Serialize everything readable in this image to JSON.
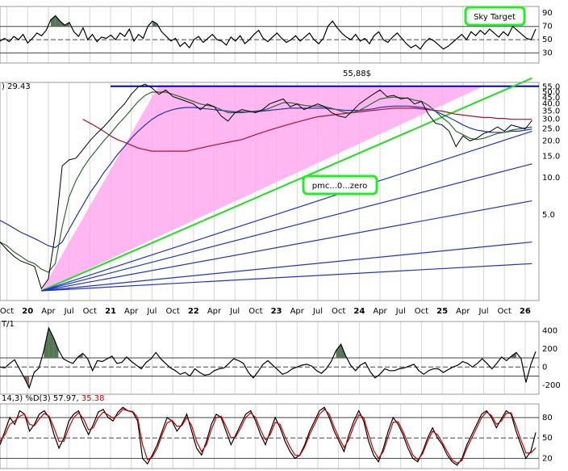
{
  "chart_data": [
    {
      "type": "line",
      "panel": "rsi",
      "yticks": [
        "90",
        "70",
        "50",
        "30"
      ],
      "ylim": [
        15,
        100
      ],
      "reference_lines": [
        70,
        50,
        30
      ],
      "annotation": "Sky Target",
      "series": [
        {
          "color": "#000000",
          "values": [
            48,
            52,
            47,
            55,
            50,
            58,
            45,
            52,
            60,
            56,
            64,
            80,
            86,
            78,
            72,
            76,
            62,
            55,
            68,
            50,
            58,
            47,
            54,
            52,
            57,
            50,
            60,
            55,
            66,
            48,
            58,
            52,
            70,
            78,
            74,
            62,
            55,
            48,
            52,
            40,
            46,
            38,
            50,
            55,
            46,
            52,
            58,
            50,
            48,
            42,
            54,
            48,
            56,
            44,
            50,
            58,
            64,
            52,
            47,
            54,
            60,
            52,
            46,
            50,
            56,
            48,
            54,
            60,
            50,
            44,
            52,
            70,
            78,
            68,
            60,
            54,
            50,
            58,
            48,
            52,
            44,
            56,
            62,
            50,
            46,
            54,
            60,
            52,
            44,
            38,
            42,
            36,
            46,
            52,
            48,
            42,
            36,
            40,
            46,
            52,
            58,
            50,
            62,
            56,
            64,
            58,
            66,
            60,
            54,
            62,
            56,
            70,
            64,
            58,
            52,
            50,
            66
          ]
        }
      ]
    },
    {
      "type": "line",
      "panel": "price",
      "scale": "log",
      "header_value": "29.43",
      "yticks": [
        "55.0",
        "50.0",
        "45.0",
        "40.0",
        "35.0",
        "30.0",
        "25.0",
        "20.0",
        "15.0",
        "10.0",
        "5.0"
      ],
      "xtick_labels": [
        "Oct",
        "20",
        "Apr",
        "Jul",
        "Oct",
        "21",
        "Apr",
        "Jul",
        "Oct",
        "22",
        "Apr",
        "Jul",
        "Oct",
        "23",
        "Apr",
        "Jul",
        "Oct",
        "24",
        "Apr",
        "Jul",
        "Oct",
        "25",
        "Apr",
        "Jul",
        "Oct",
        "26"
      ],
      "xtick_dates": [
        "2019-10",
        "2020-01",
        "2020-04",
        "2020-07",
        "2020-10",
        "2021-01",
        "2021-04",
        "2021-07",
        "2021-10",
        "2022-01",
        "2022-04",
        "2022-07",
        "2022-10",
        "2023-01",
        "2023-04",
        "2023-07",
        "2023-10",
        "2024-01",
        "2024-04",
        "2024-07",
        "2024-10",
        "2025-01",
        "2025-04",
        "2025-07",
        "2025-10",
        "2026-01"
      ],
      "annotations": [
        "55,88$",
        "pmc...0...zero"
      ],
      "horizontal_line": {
        "value": 55.88,
        "color": "#0000cc"
      },
      "fan_lines": {
        "origin": {
          "date": "2020-03",
          "value": 1.2
        },
        "colors": [
          "#22dd22",
          "#2233cc",
          "#2233cc",
          "#2233cc",
          "#2233cc",
          "#2233cc"
        ],
        "end_values_2026_02": [
          65,
          24,
          13,
          6.5,
          3.0,
          2.0
        ]
      },
      "shaded_triangle_color": "#ffaaee",
      "price": {
        "dates": [
          "2019-09",
          "2019-10",
          "2019-11",
          "2019-12",
          "2020-01",
          "2020-02",
          "2020-03",
          "2020-04",
          "2020-05",
          "2020-06",
          "2020-07",
          "2020-08",
          "2020-09",
          "2020-10",
          "2020-11",
          "2020-12",
          "2021-01",
          "2021-02",
          "2021-03",
          "2021-04",
          "2021-05",
          "2021-06",
          "2021-07",
          "2021-08",
          "2021-09",
          "2021-10",
          "2021-11",
          "2021-12",
          "2022-01",
          "2022-02",
          "2022-03",
          "2022-04",
          "2022-05",
          "2022-06",
          "2022-07",
          "2022-08",
          "2022-09",
          "2022-10",
          "2022-11",
          "2022-12",
          "2023-01",
          "2023-02",
          "2023-03",
          "2023-04",
          "2023-05",
          "2023-06",
          "2023-07",
          "2023-08",
          "2023-09",
          "2023-10",
          "2023-11",
          "2023-12",
          "2024-01",
          "2024-02",
          "2024-03",
          "2024-04",
          "2024-05",
          "2024-06",
          "2024-07",
          "2024-08",
          "2024-09",
          "2024-10",
          "2024-11",
          "2024-12",
          "2025-01",
          "2025-02",
          "2025-03",
          "2025-04",
          "2025-05",
          "2025-06",
          "2025-07",
          "2025-08",
          "2025-09",
          "2025-10",
          "2025-11",
          "2025-12",
          "2026-01",
          "2026-02"
        ],
        "values": [
          3.0,
          2.6,
          2.3,
          2.1,
          2.0,
          1.9,
          1.25,
          1.5,
          3.5,
          12.5,
          14.0,
          14.5,
          17.0,
          20.0,
          23.0,
          26.0,
          30.0,
          35.0,
          40.0,
          48.0,
          55.0,
          58.0,
          54.0,
          48.0,
          52.0,
          46.0,
          44.0,
          42.0,
          40.0,
          36.0,
          40.0,
          38.0,
          32.0,
          29.0,
          34.0,
          36.0,
          35.0,
          34.0,
          36.0,
          40.0,
          42.0,
          44.0,
          38.0,
          40.0,
          36.0,
          38.0,
          40.0,
          38.0,
          34.0,
          32.0,
          31.0,
          35.0,
          40.0,
          44.0,
          48.0,
          52.0,
          46.0,
          47.0,
          44.0,
          45.0,
          40.0,
          42.0,
          33.0,
          28.0,
          27.0,
          24.0,
          18.0,
          22.0,
          20.0,
          21.0,
          23.0,
          24.0,
          26.0,
          24.0,
          27.0,
          26.0,
          25.0,
          29.43
        ]
      },
      "ma_short": {
        "color": "#336633",
        "values": [
          3.0,
          2.8,
          2.5,
          2.3,
          2.1,
          2.0,
          1.8,
          1.7,
          2.0,
          4.0,
          7.0,
          9.5,
          12.0,
          14.5,
          17.0,
          20.0,
          23.0,
          27.0,
          31.0,
          36.0,
          42.0,
          47.0,
          50.0,
          50.0,
          50.0,
          48.0,
          46.0,
          44.0,
          42.0,
          40.0,
          39.0,
          38.0,
          36.0,
          34.0,
          34.0,
          34.0,
          34.5,
          35.0,
          35.5,
          37.0,
          39.0,
          41.0,
          41.0,
          40.0,
          39.0,
          38.5,
          38.5,
          38.0,
          37.0,
          35.5,
          34.0,
          34.0,
          35.5,
          38.0,
          41.0,
          44.0,
          45.0,
          45.5,
          45.0,
          44.5,
          43.0,
          42.0,
          39.0,
          35.0,
          31.0,
          28.0,
          24.0,
          22.5,
          21.0,
          20.5,
          21.0,
          22.0,
          23.0,
          23.5,
          24.5,
          25.0,
          25.5,
          26.0
        ]
      },
      "ma_mid": {
        "color": "#2233aa",
        "values": [
          4.5,
          4.2,
          3.9,
          3.6,
          3.4,
          3.2,
          3.0,
          2.8,
          2.7,
          3.0,
          3.8,
          4.8,
          6.0,
          7.5,
          9.0,
          11.0,
          13.0,
          15.5,
          18.0,
          21.0,
          24.0,
          27.0,
          30.0,
          32.5,
          34.5,
          36.0,
          37.0,
          37.5,
          37.5,
          37.0,
          36.5,
          36.0,
          35.5,
          35.0,
          34.5,
          34.5,
          34.5,
          34.5,
          35.0,
          35.5,
          36.0,
          36.5,
          37.0,
          37.0,
          37.0,
          37.0,
          37.0,
          37.0,
          36.5,
          36.0,
          35.5,
          35.5,
          35.5,
          36.0,
          36.5,
          37.5,
          38.0,
          38.5,
          38.5,
          38.5,
          38.0,
          37.5,
          36.5,
          35.0,
          33.0,
          31.0,
          29.0,
          27.0,
          25.5,
          24.5,
          24.0,
          23.5,
          23.5,
          23.5,
          24.0,
          24.0,
          24.5,
          25.0
        ]
      },
      "ma_long": {
        "color": "#aa1133",
        "values": [
          null,
          null,
          null,
          null,
          null,
          null,
          null,
          null,
          null,
          null,
          null,
          null,
          30.0,
          28.0,
          26.0,
          24.0,
          22.0,
          20.5,
          19.5,
          18.5,
          17.5,
          17.0,
          16.5,
          16.5,
          16.5,
          16.5,
          16.5,
          16.5,
          17.0,
          17.5,
          18.0,
          18.5,
          19.0,
          19.5,
          20.0,
          20.5,
          21.5,
          22.5,
          23.5,
          24.5,
          25.5,
          26.5,
          27.5,
          28.5,
          29.5,
          30.5,
          31.5,
          32.0,
          32.5,
          33.0,
          33.5,
          34.0,
          34.5,
          35.0,
          35.5,
          36.0,
          36.5,
          37.0,
          37.0,
          37.0,
          37.0,
          36.5,
          36.0,
          35.5,
          35.0,
          34.0,
          33.0,
          32.5,
          32.0,
          31.5,
          31.0,
          31.0,
          30.5,
          30.5,
          30.0,
          30.0,
          30.0,
          30.0
        ]
      }
    },
    {
      "type": "line",
      "panel": "oscillator",
      "header": "T/1",
      "yticks": [
        "400",
        "200",
        "0",
        "-200"
      ],
      "ylim": [
        -300,
        500
      ],
      "reference_lines": [
        0,
        100,
        -100
      ],
      "series": [
        {
          "color": "#000000",
          "values": [
            0,
            -10,
            40,
            80,
            -20,
            -120,
            -230,
            -60,
            -10,
            180,
            430,
            320,
            190,
            90,
            60,
            40,
            110,
            150,
            90,
            -40,
            70,
            60,
            90,
            120,
            40,
            50,
            110,
            60,
            20,
            -20,
            50,
            90,
            160,
            90,
            40,
            -10,
            -40,
            -80,
            -60,
            -100,
            -20,
            -60,
            -90,
            -80,
            -40,
            -20,
            -10,
            40,
            90,
            70,
            40,
            -60,
            -120,
            -50,
            30,
            70,
            20,
            -30,
            -80,
            -60,
            -20,
            0,
            20,
            30,
            10,
            -40,
            -70,
            -20,
            60,
            180,
            250,
            120,
            20,
            -40,
            20,
            50,
            -50,
            -120,
            -80,
            -20,
            -40,
            -40,
            -20,
            -10,
            10,
            30,
            -40,
            -80,
            -40,
            -20,
            -20,
            -60,
            -30,
            0,
            20,
            60,
            40,
            0,
            40,
            90,
            40,
            -20,
            40,
            110,
            70,
            120,
            160,
            90,
            -170,
            30,
            170
          ]
        }
      ]
    },
    {
      "type": "line",
      "panel": "stochastic",
      "header": "14,3) %D(3)",
      "header_values": [
        "57.97",
        "35.38"
      ],
      "yticks": [
        "80",
        "50",
        "20"
      ],
      "ylim": [
        5,
        100
      ],
      "reference_lines": [
        80,
        50,
        20
      ],
      "series": [
        {
          "color": "#000000",
          "values": [
            40,
            60,
            80,
            70,
            90,
            85,
            60,
            70,
            85,
            90,
            80,
            55,
            35,
            50,
            75,
            85,
            90,
            70,
            55,
            70,
            88,
            92,
            80,
            75,
            88,
            95,
            90,
            88,
            75,
            20,
            12,
            25,
            40,
            60,
            80,
            75,
            60,
            70,
            85,
            60,
            35,
            25,
            45,
            70,
            85,
            80,
            60,
            40,
            55,
            70,
            85,
            90,
            75,
            55,
            40,
            60,
            80,
            65,
            45,
            30,
            20,
            25,
            40,
            60,
            75,
            90,
            95,
            80,
            60,
            45,
            30,
            55,
            75,
            90,
            75,
            45,
            25,
            15,
            35,
            60,
            80,
            70,
            55,
            35,
            20,
            15,
            30,
            50,
            65,
            50,
            40,
            25,
            15,
            10,
            20,
            40,
            55,
            70,
            85,
            90,
            80,
            65,
            78,
            90,
            85,
            60,
            40,
            20,
            30,
            57.97
          ]
        },
        {
          "color": "#cc0000",
          "values": [
            45,
            55,
            70,
            75,
            82,
            85,
            70,
            68,
            78,
            86,
            82,
            65,
            45,
            45,
            65,
            80,
            87,
            78,
            62,
            65,
            80,
            88,
            84,
            79,
            84,
            92,
            90,
            89,
            80,
            40,
            18,
            22,
            35,
            55,
            72,
            76,
            67,
            68,
            80,
            68,
            45,
            30,
            40,
            62,
            80,
            82,
            67,
            50,
            52,
            65,
            80,
            87,
            80,
            62,
            47,
            55,
            73,
            70,
            52,
            37,
            25,
            24,
            37,
            55,
            70,
            85,
            92,
            85,
            66,
            50,
            36,
            48,
            68,
            84,
            80,
            55,
            32,
            20,
            30,
            52,
            73,
            74,
            60,
            42,
            25,
            18,
            27,
            45,
            60,
            55,
            43,
            30,
            18,
            13,
            17,
            35,
            50,
            65,
            80,
            88,
            83,
            70,
            75,
            86,
            87,
            68,
            47,
            28,
            28,
            35.38
          ]
        }
      ]
    }
  ]
}
